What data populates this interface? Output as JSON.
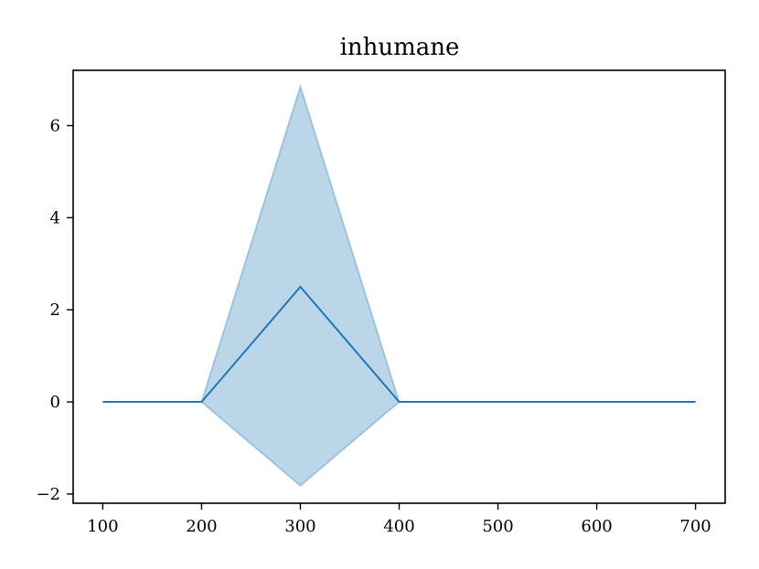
{
  "chart_data": {
    "type": "line",
    "title": "inhumane",
    "xlabel": "",
    "ylabel": "",
    "xlim": [
      70,
      730
    ],
    "ylim": [
      -2.2,
      7.2
    ],
    "x_ticks": [
      100,
      200,
      300,
      400,
      500,
      600,
      700
    ],
    "x_tick_labels": [
      "100",
      "200",
      "300",
      "400",
      "500",
      "600",
      "700"
    ],
    "y_ticks": [
      -2,
      0,
      2,
      4,
      6
    ],
    "y_tick_labels": [
      "−2",
      "0",
      "2",
      "4",
      "6"
    ],
    "grid": false,
    "series": [
      {
        "x": [
          100,
          200,
          300,
          400,
          500,
          600,
          700
        ],
        "values": [
          0,
          0,
          2.5,
          0,
          0,
          0,
          0
        ],
        "band_upper": [
          0,
          0,
          6.85,
          0,
          0,
          0,
          0
        ],
        "band_lower": [
          0,
          0,
          -1.82,
          0,
          0,
          0,
          0
        ],
        "color": "#1f77b4"
      }
    ]
  }
}
